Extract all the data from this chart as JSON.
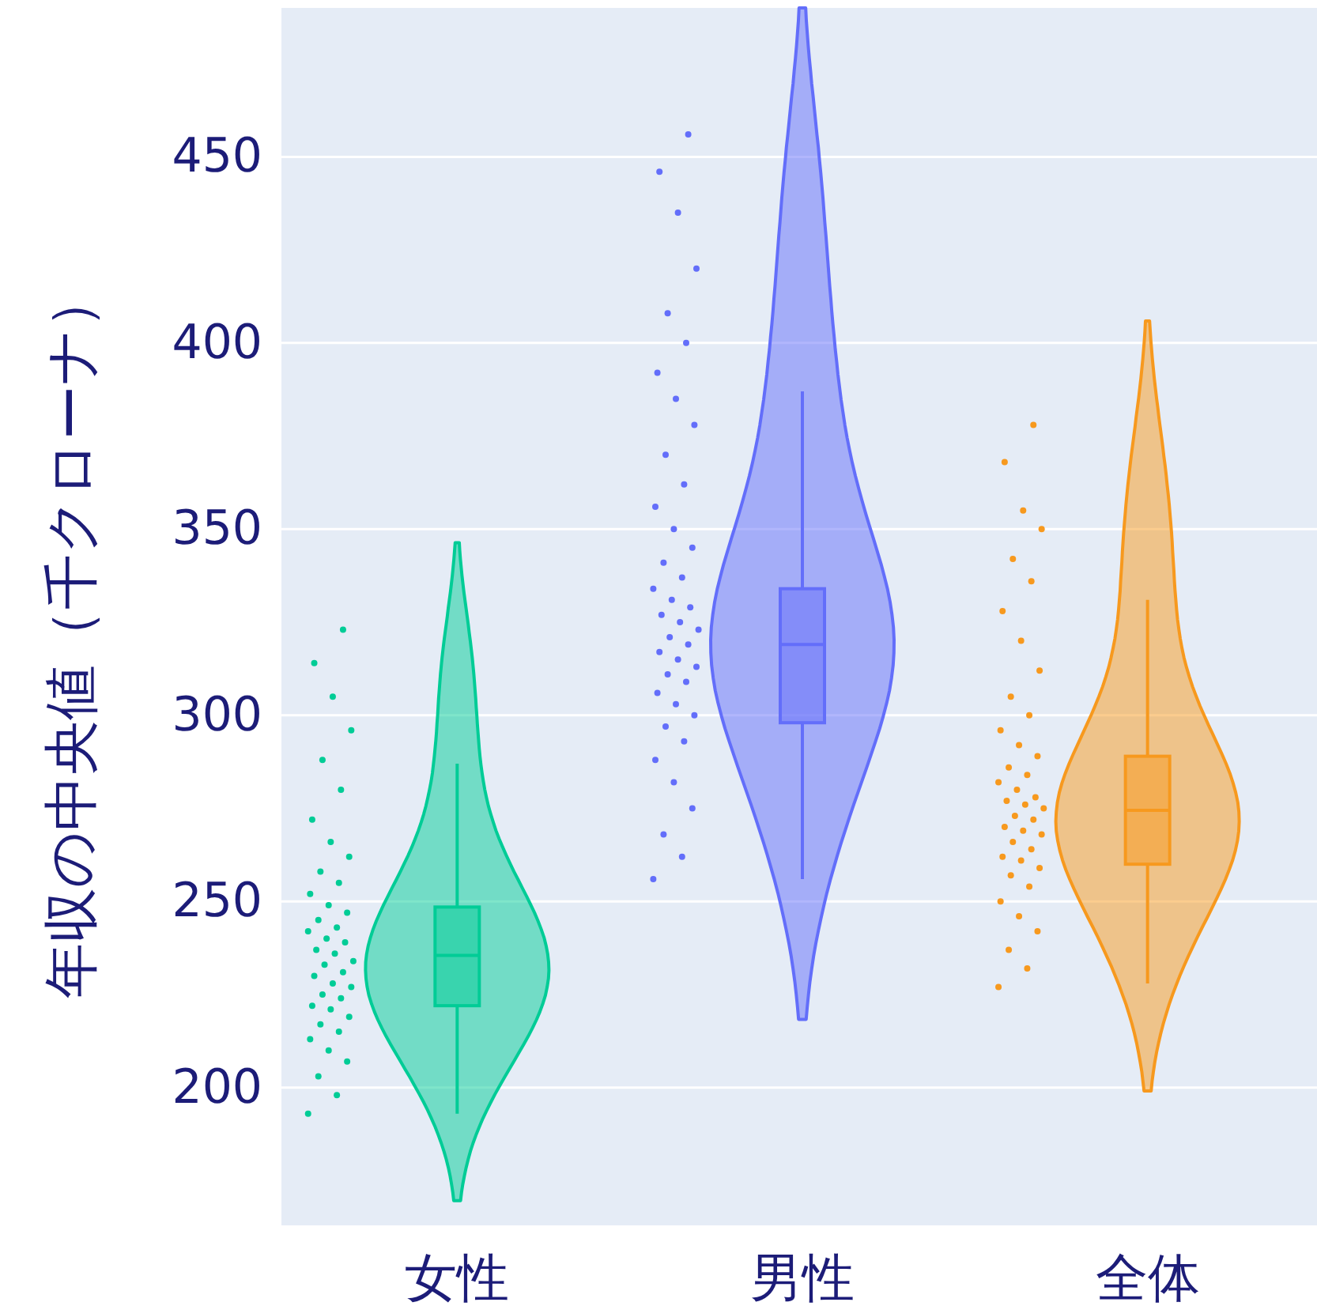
{
  "chart_data": {
    "type": "box",
    "categories": [
      "女性",
      "男性",
      "全体"
    ],
    "ylabel": "年収の中央値（千クローナ）",
    "ylim": [
      163,
      490
    ],
    "yticks": [
      200,
      250,
      300,
      350,
      400,
      450
    ],
    "grid": "y",
    "colors": [
      "#00cc96",
      "#636efa",
      "#f7991e"
    ],
    "boxes": [
      {
        "low": 193,
        "q1": 222,
        "median": 235.5,
        "q3": 248.5,
        "high": 287
      },
      {
        "low": 256,
        "q1": 298,
        "median": 319,
        "q3": 334,
        "high": 387
      },
      {
        "low": 228,
        "q1": 260,
        "median": 274.5,
        "q3": 289,
        "high": 331
      }
    ],
    "series": [
      {
        "type": "scatter",
        "color": "#00cc96",
        "x": [
          "女性",
          "女性",
          "女性",
          "女性",
          "女性",
          "女性",
          "女性",
          "女性",
          "女性",
          "女性",
          "女性",
          "女性",
          "女性",
          "女性",
          "女性",
          "女性",
          "女性",
          "女性",
          "女性",
          "女性",
          "女性",
          "女性",
          "女性",
          "女性",
          "女性",
          "女性",
          "女性",
          "女性",
          "女性",
          "女性",
          "女性",
          "女性",
          "女性",
          "女性",
          "女性",
          "女性",
          "女性",
          "女性",
          "女性",
          "女性"
        ],
        "values": [
          193,
          198,
          203,
          207,
          210,
          213,
          215,
          217,
          219,
          221,
          222,
          224,
          225,
          227,
          228,
          230,
          231,
          233,
          234,
          236,
          237,
          239,
          240,
          242,
          243,
          245,
          247,
          249,
          252,
          255,
          258,
          262,
          266,
          272,
          280,
          288,
          296,
          305,
          314,
          323
        ]
      },
      {
        "type": "scatter",
        "color": "#636efa",
        "x": [
          "男性",
          "男性",
          "男性",
          "男性",
          "男性",
          "男性",
          "男性",
          "男性",
          "男性",
          "男性",
          "男性",
          "男性",
          "男性",
          "男性",
          "男性",
          "男性",
          "男性",
          "男性",
          "男性",
          "男性",
          "男性",
          "男性",
          "男性",
          "男性",
          "男性",
          "男性",
          "男性",
          "男性",
          "男性",
          "男性",
          "男性",
          "男性",
          "男性",
          "男性",
          "男性",
          "男性",
          "男性",
          "男性",
          "男性",
          "男性"
        ],
        "values": [
          256,
          262,
          268,
          275,
          282,
          288,
          293,
          297,
          300,
          303,
          306,
          309,
          311,
          313,
          315,
          317,
          319,
          321,
          323,
          325,
          327,
          329,
          331,
          334,
          337,
          341,
          345,
          350,
          356,
          362,
          370,
          378,
          385,
          392,
          400,
          408,
          420,
          435,
          446,
          456
        ]
      },
      {
        "type": "scatter",
        "color": "#f7991e",
        "x": [
          "全体",
          "全体",
          "全体",
          "全体",
          "全体",
          "全体",
          "全体",
          "全体",
          "全体",
          "全体",
          "全体",
          "全体",
          "全体",
          "全体",
          "全体",
          "全体",
          "全体",
          "全体",
          "全体",
          "全体",
          "全体",
          "全体",
          "全体",
          "全体",
          "全体",
          "全体",
          "全体",
          "全体",
          "全体",
          "全体",
          "全体",
          "全体",
          "全体",
          "全体",
          "全体",
          "全体",
          "全体",
          "全体",
          "全体",
          "全体"
        ],
        "values": [
          227,
          232,
          237,
          242,
          246,
          250,
          254,
          257,
          259,
          261,
          262,
          264,
          266,
          268,
          269,
          270,
          272,
          273,
          275,
          276,
          277,
          278,
          280,
          282,
          284,
          286,
          289,
          292,
          296,
          300,
          305,
          312,
          320,
          328,
          336,
          342,
          350,
          355,
          368,
          378
        ]
      }
    ]
  }
}
